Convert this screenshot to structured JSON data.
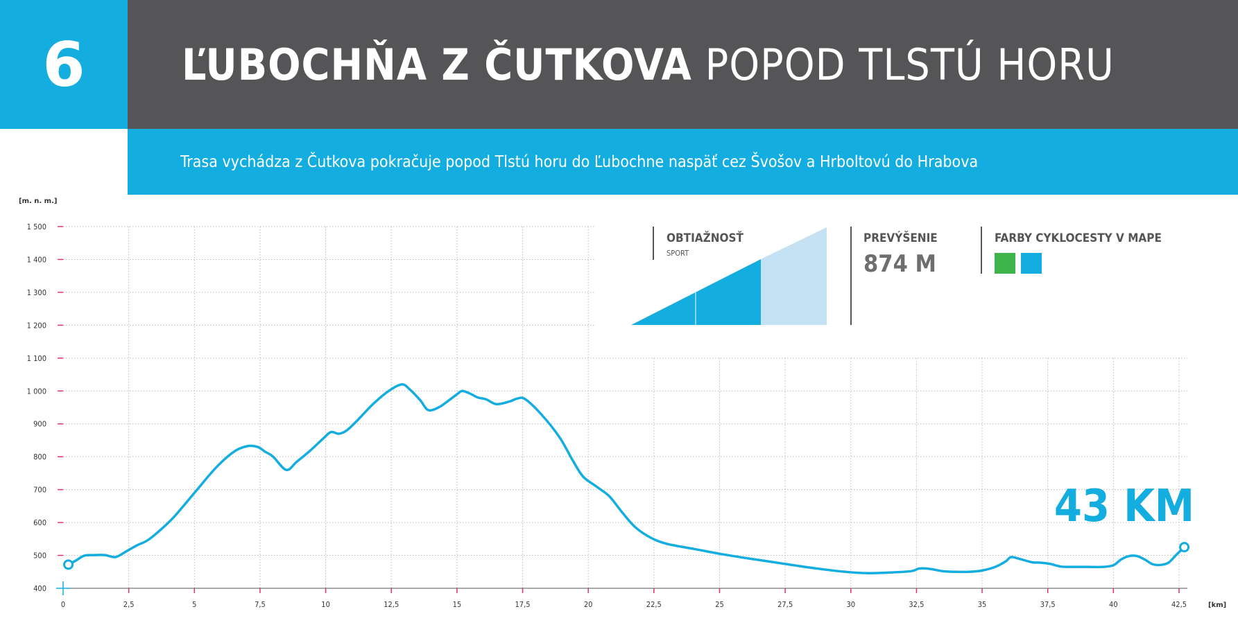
{
  "header": {
    "route_number": "6",
    "title_bold": "ĽUBOCHŇA Z ČUTKOVA",
    "title_regular": "POPOD TLSTÚ HORU",
    "subtitle": "Trasa vychádza z Čutkova pokračuje popod Tlstú horu do Ľubochne naspäť cez Švošov a Hrboltovú do Hrabova"
  },
  "info": {
    "difficulty_label": "OBTIAŽNOSŤ",
    "difficulty_value": "SPORT",
    "elevation_gain_label": "PREVÝŠENIE",
    "elevation_gain_value": "874 M",
    "colors_label": "FARBY CYKLOCESTY V MAPE",
    "route_colors": [
      "#3db54a",
      "#14ade0"
    ]
  },
  "total_distance": "43 KM",
  "colors": {
    "accent": "#14ade0",
    "dark": "#555557",
    "tick": "#e3326b",
    "light_accent": "#c4e2f4"
  },
  "chart_data": {
    "type": "line",
    "xlabel": "[km]",
    "ylabel": "[m. n. m.]",
    "xlim": [
      0,
      42.5
    ],
    "ylim": [
      400,
      1500
    ],
    "x_ticks": [
      "0",
      "2,5",
      "5",
      "7,5",
      "10",
      "12,5",
      "15",
      "17,5",
      "20",
      "22,5",
      "25",
      "27,5",
      "30",
      "32,5",
      "35",
      "37,5",
      "40",
      "42,5"
    ],
    "y_ticks": [
      "400",
      "500",
      "600",
      "700",
      "800",
      "900",
      "1 000",
      "1 100",
      "1 200",
      "1 300",
      "1 400",
      "1 500"
    ],
    "grid": true,
    "series": [
      {
        "x": [
          0.2,
          0.5,
          0.8,
          1.2,
          1.6,
          2.0,
          2.4,
          2.8,
          3.2,
          3.6,
          4.2,
          5.0,
          5.8,
          6.5,
          7.0,
          7.4,
          7.7,
          8.0,
          8.5,
          8.9,
          9.4,
          9.9,
          10.2,
          10.5,
          10.8,
          11.2,
          11.8,
          12.4,
          12.9,
          13.2,
          13.6,
          13.9,
          14.3,
          14.7,
          15.0,
          15.2,
          15.5,
          15.8,
          16.1,
          16.5,
          17.0,
          17.3,
          17.6,
          18.2,
          18.9,
          19.4,
          19.8,
          20.3,
          20.8,
          21.3,
          21.8,
          22.4,
          23.0,
          24.0,
          25.0,
          26.0,
          27.0,
          28.0,
          29.0,
          29.8,
          30.6,
          31.5,
          32.3,
          32.6,
          33.0,
          33.5,
          34.0,
          34.5,
          35.0,
          35.5,
          35.9,
          36.1,
          36.4,
          36.9,
          37.2,
          37.6,
          38.0,
          38.5,
          39.0,
          39.6,
          40.0,
          40.3,
          40.6,
          40.9,
          41.2,
          41.5,
          41.8,
          42.1,
          42.4,
          42.7
        ],
        "y": [
          472,
          485,
          499,
          501,
          501,
          495,
          512,
          530,
          545,
          570,
          615,
          690,
          765,
          815,
          832,
          830,
          815,
          800,
          760,
          785,
          818,
          855,
          875,
          870,
          880,
          910,
          960,
          1000,
          1020,
          1005,
          972,
          942,
          950,
          972,
          990,
          1000,
          992,
          980,
          975,
          960,
          968,
          977,
          975,
          930,
          860,
          790,
          740,
          710,
          680,
          630,
          585,
          553,
          535,
          520,
          505,
          492,
          480,
          468,
          457,
          450,
          446,
          448,
          452,
          460,
          459,
          452,
          450,
          450,
          454,
          465,
          482,
          495,
          490,
          479,
          478,
          474,
          466,
          465,
          465,
          465,
          470,
          488,
          498,
          498,
          487,
          473,
          471,
          478,
          502,
          525
        ]
      }
    ]
  }
}
